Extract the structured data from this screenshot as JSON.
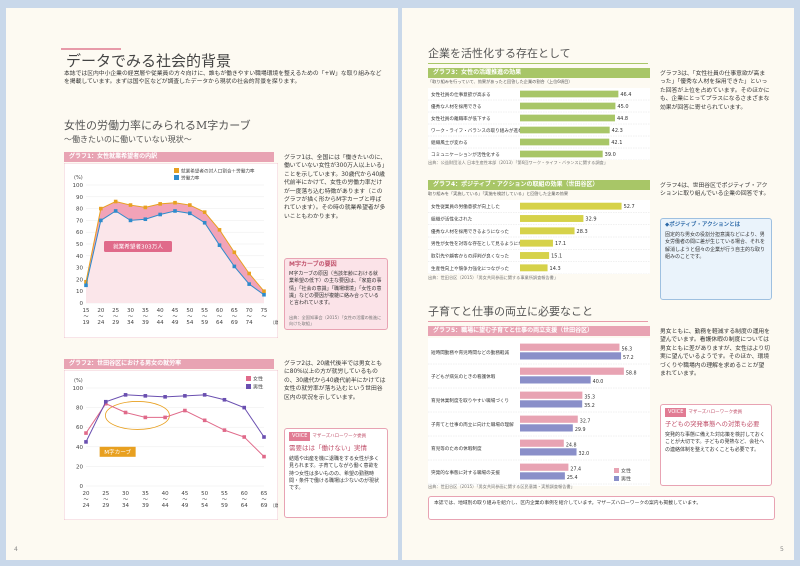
{
  "left": {
    "title": "データでみる社会的背景",
    "intro": "本誌では区内中小企業の経営層や従業員の方々向けに、誰もが働きやすい職場環境を整えるための「+W」な取り組みなどを掲載しています。まずは国や区などが調査したデータから現状の社会的背景を探ります。",
    "section_title": "女性の労働力率にみられるM字カーブ",
    "section_subtitle": "～働きたいのに働いていない現状～",
    "graph1": {
      "header": "グラフ1：女性就業希望者の内訳",
      "legend": [
        "就業希望者の対人口割合＋労働力率",
        "労働力率"
      ],
      "ylabel": "(%)",
      "label": "就業希望者303万人",
      "xunit": "（歳）",
      "source": "出典：内閣府男女共同参画局（2015）「男女共同参画白書 平成27年版」"
    },
    "text1": "グラフ1は、全国には「働きたいのに、働いていない女性が300万人以上いる」ことを示しています。30歳代から40歳代前半にかけて、女性の労働力率だけが一度落ち込む特徴があります（このグラフが描く形からM字カーブと呼ばれています）。その時の就業希望者が多いこともわかります。",
    "mcurve_box_title": "M字カーブの要因",
    "mcurve_box_text": "M字カーブの原因（当該年齢における就業希望の低下）の主な要因は、「家庭の事情」「社会の意識」「職場環境」「女性の意識」などの要因が複雑に絡み合っていると言われています。",
    "mcurve_box_source": "出典：全国知事会（2015）「女性の活躍の推進に向けた取組」",
    "graph2": {
      "header": "グラフ2：世田谷区における男女の就労率",
      "ylabel": "(%)",
      "legend": [
        "女性",
        "男性"
      ],
      "mcurve_label": "M字カーブ",
      "xunit": "（歳）",
      "source": "出典：世田谷区（2015）「男女共同参画に関する区民意識・実態調査報告書」"
    },
    "text2": "グラフ2は、20歳代後半では男女ともに80%以上の方が就労しているものの、30歳代から40歳代前半にかけては女性の就労率が落ち込むという世田谷区内の状況を示しています。",
    "voice": {
      "tag": "VOICE",
      "tag_sub": "マザーズハローワーク委員",
      "title": "需要はは「働けない」実情",
      "text": "結婚や出産を機に退職をする女性が多く見られます。子育てしながら働く意欲を持つ女性は多いものの、希望の勤務時間・条件で働ける職場は少ないのが現状です。"
    },
    "page_number": "4"
  },
  "right": {
    "section1_title": "企業を活性化する存在として",
    "graph3": {
      "header": "グラフ3：女性の活躍推進の効果",
      "note": "「取り組みを行っていて、効果があったと回答した企業の割合（上位6項目）",
      "source": "出典：公益財団法人 日本生産性本部（2013）「第6回ワーク・ライフ・バランスに関する調査」"
    },
    "text3": "グラフ3は、「女性社員の仕事意欲が高まった」「優秀な人材を採用できた」といった回答が上位を占めています。そのほかにも、企業にとってプラスになるさまざまな効果が回答に寄せられています。",
    "graph4": {
      "header": "グラフ4：ポジティブ・アクションの取組の効果（世田谷区）",
      "note": "取り組みを「実施している」「実施を検討している」と回答した企業の効果",
      "source": "出典：世田谷区（2015）「男女共同参画に関する事業所調査報告書」"
    },
    "text4": "グラフ4は、世田谷区でポジティブ・アクションに取り組んでいる企業の回答です。",
    "pa_box_title": "◆ポジティブ・アクションとは",
    "pa_box_text": "固定的な男女の役割分担意識などにより、男女労働者の間に差が生じている場合、それを解消しようと個々の企業が行う自主的な取り組みのことです。",
    "section2_title": "子育てと仕事の両立に必要なこと",
    "graph5": {
      "header": "グラフ5：職場に望む子育てと仕事の両立支援（世田谷区）",
      "legend": [
        "女性",
        "男性"
      ],
      "source": "出典：世田谷区（2015）「男女共同参画に関する区民意識・実態調査報告書」"
    },
    "text5": "男女ともに、勤務を軽減する制度の運用を望んでいます。看護休暇の制度については男女ともに差がありますが、女性はより切実に望んでいるようです。そのほか、環境づくりや職場内の理解を求めることが望まれています。",
    "voice": {
      "tag": "VOICE",
      "tag_sub": "マザーズハローワーク委員",
      "title": "子どもの突発事態への対策も必要",
      "text": "突発的な事態に備えた対応策を検討しておくことが大切です。子どもの発熱など、会社への連絡体制を整えておくことも必要です。"
    },
    "bottom_note": "本誌では、地域別の取り組みを紹介し、区内企業の事例を紹介しています。マザーズハローワークの案内も掲載しています。",
    "page_number": "5"
  },
  "chart_data": [
    {
      "type": "area",
      "title": "グラフ1：女性就業希望者の内訳",
      "x": [
        "15〜19",
        "20〜24",
        "25〜29",
        "30〜34",
        "35〜39",
        "40〜44",
        "45〜49",
        "50〜54",
        "55〜59",
        "60〜64",
        "65〜69",
        "70〜74",
        "75〜"
      ],
      "series": [
        {
          "name": "就業希望者の対人口割合＋労働力率",
          "values": [
            18,
            80,
            86,
            83,
            81,
            84,
            85,
            83,
            77,
            62,
            43,
            25,
            10
          ]
        },
        {
          "name": "労働力率",
          "values": [
            15,
            70,
            78,
            70,
            71,
            75,
            78,
            76,
            68,
            49,
            31,
            16,
            7
          ]
        }
      ],
      "ylim": [
        0,
        100
      ],
      "ylabel": "(%)",
      "annotation": "就業希望者303万人"
    },
    {
      "type": "line",
      "title": "グラフ2：世田谷区における男女の就労率",
      "x": [
        "20〜24",
        "25〜29",
        "30〜34",
        "35〜39",
        "40〜44",
        "45〜49",
        "50〜54",
        "55〜59",
        "60〜64",
        "65〜69"
      ],
      "series": [
        {
          "name": "女性",
          "values": [
            54,
            84,
            75,
            70,
            70,
            77,
            67,
            57,
            50,
            30
          ]
        },
        {
          "name": "男性",
          "values": [
            45,
            86,
            93,
            92,
            91,
            92,
            93,
            88,
            80,
            50
          ]
        }
      ],
      "ylim": [
        0,
        100
      ],
      "ylabel": "(%)",
      "annotation": "M字カーブ"
    },
    {
      "type": "bar",
      "title": "グラフ3：女性の活躍推進の効果",
      "categories": [
        "女性社員の仕事意欲が高まる",
        "優秀な人材を採用できる",
        "女性社員の離職率が低下する",
        "ワーク・ライフ・バランスの取り組みが進む",
        "組織風土が変わる",
        "コミュニケーションが活性化する"
      ],
      "values": [
        46.4,
        45.0,
        44.8,
        42.3,
        42.1,
        39.0
      ],
      "xlim": [
        0,
        50
      ]
    },
    {
      "type": "bar",
      "title": "グラフ4：ポジティブ・アクションの取組の効果（世田谷区）",
      "categories": [
        "女性従業員の労働意欲が向上した",
        "組織が活性化された",
        "優秀な人材を採用できるようになった",
        "男性が女性を対等な存在として見るようになった",
        "取引先や顧客からの評判が良くなった",
        "生産性向上や競争力強化につながった"
      ],
      "values": [
        52.7,
        32.9,
        28.3,
        17.1,
        15.1,
        14.3
      ],
      "xlim": [
        0,
        55
      ]
    },
    {
      "type": "bar",
      "title": "グラフ5：職場に望む子育てと仕事の両立支援（世田谷区）",
      "categories": [
        "短時間勤務や育児時間などの勤務軽減",
        "子どもが病気のときの看護休暇",
        "育児休業制度を取りやすい職場づくり",
        "子育てと仕事の両立に向けた職場の理解",
        "育児等のための休暇制度",
        "突発的な事態に対する職場の支援"
      ],
      "series": [
        {
          "name": "女性",
          "values": [
            56.3,
            58.8,
            35.3,
            32.7,
            24.8,
            27.4
          ]
        },
        {
          "name": "男性",
          "values": [
            57.2,
            40.0,
            35.2,
            29.9,
            32.0,
            25.4
          ]
        }
      ],
      "xlim": [
        0,
        60
      ]
    }
  ]
}
